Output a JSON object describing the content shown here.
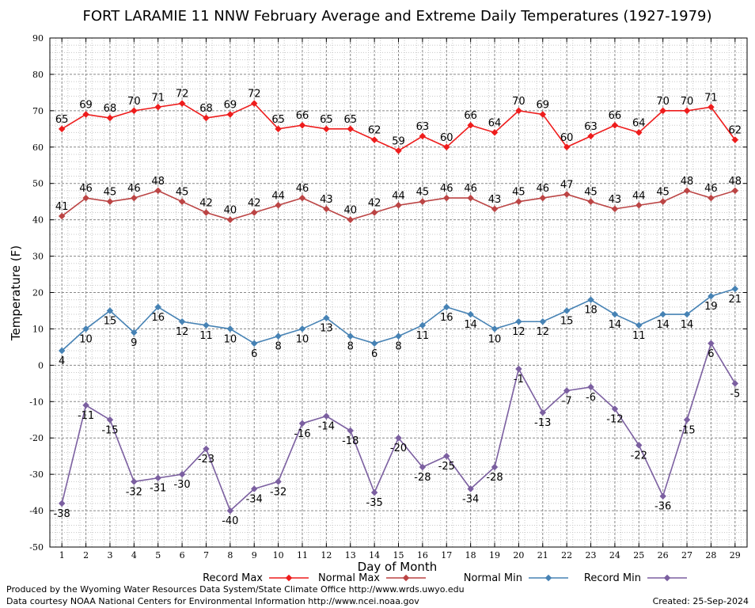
{
  "chart_data": {
    "type": "line",
    "title": "FORT LARAMIE 11 NNW February Average and Extreme Daily Temperatures (1927-1979)",
    "xlabel": "Day of Month",
    "ylabel": "Temperature (F)",
    "ylim": [
      -50,
      90
    ],
    "yticks": [
      -50,
      -40,
      -30,
      -20,
      -10,
      0,
      10,
      20,
      30,
      40,
      50,
      60,
      70,
      80,
      90
    ],
    "x": [
      1,
      2,
      3,
      4,
      5,
      6,
      7,
      8,
      9,
      10,
      11,
      12,
      13,
      14,
      15,
      16,
      17,
      18,
      19,
      20,
      21,
      22,
      23,
      24,
      25,
      26,
      27,
      28,
      29
    ],
    "grid": true,
    "legend_position": "bottom",
    "series": [
      {
        "name": "Record Max",
        "color": "#ee1c1c",
        "values": [
          65,
          69,
          68,
          70,
          71,
          72,
          68,
          69,
          72,
          65,
          66,
          65,
          65,
          62,
          59,
          63,
          60,
          66,
          64,
          70,
          69,
          60,
          63,
          66,
          64,
          70,
          70,
          71,
          62
        ]
      },
      {
        "name": "Normal Max",
        "color": "#bb4444",
        "values": [
          41,
          46,
          45,
          46,
          48,
          45,
          42,
          40,
          42,
          44,
          46,
          43,
          40,
          42,
          44,
          45,
          46,
          46,
          43,
          45,
          46,
          47,
          45,
          43,
          44,
          45,
          48,
          46,
          48
        ]
      },
      {
        "name": "Normal Min",
        "color": "#4682b4",
        "values": [
          4,
          10,
          15,
          9,
          16,
          12,
          11,
          10,
          6,
          8,
          10,
          13,
          8,
          6,
          8,
          11,
          16,
          14,
          10,
          12,
          12,
          15,
          18,
          14,
          11,
          14,
          14,
          19,
          21
        ]
      },
      {
        "name": "Record Min",
        "color": "#7b5fa0",
        "values": [
          -38,
          -11,
          -15,
          -32,
          -31,
          -30,
          -23,
          -40,
          -34,
          -32,
          -16,
          -14,
          -18,
          -35,
          -20,
          -28,
          -25,
          -34,
          -28,
          -1,
          -13,
          -7,
          -6,
          -12,
          -22,
          -36,
          -15,
          6,
          -5
        ]
      }
    ]
  },
  "footer": {
    "line1": "Produced by the Wyoming Water Resources Data System/State Climate Office http://www.wrds.uwyo.edu",
    "line2": "Data courtesy NOAA National Centers for Environmental Information http://www.ncei.noaa.gov",
    "created": "Created:  25-Sep-2024"
  }
}
